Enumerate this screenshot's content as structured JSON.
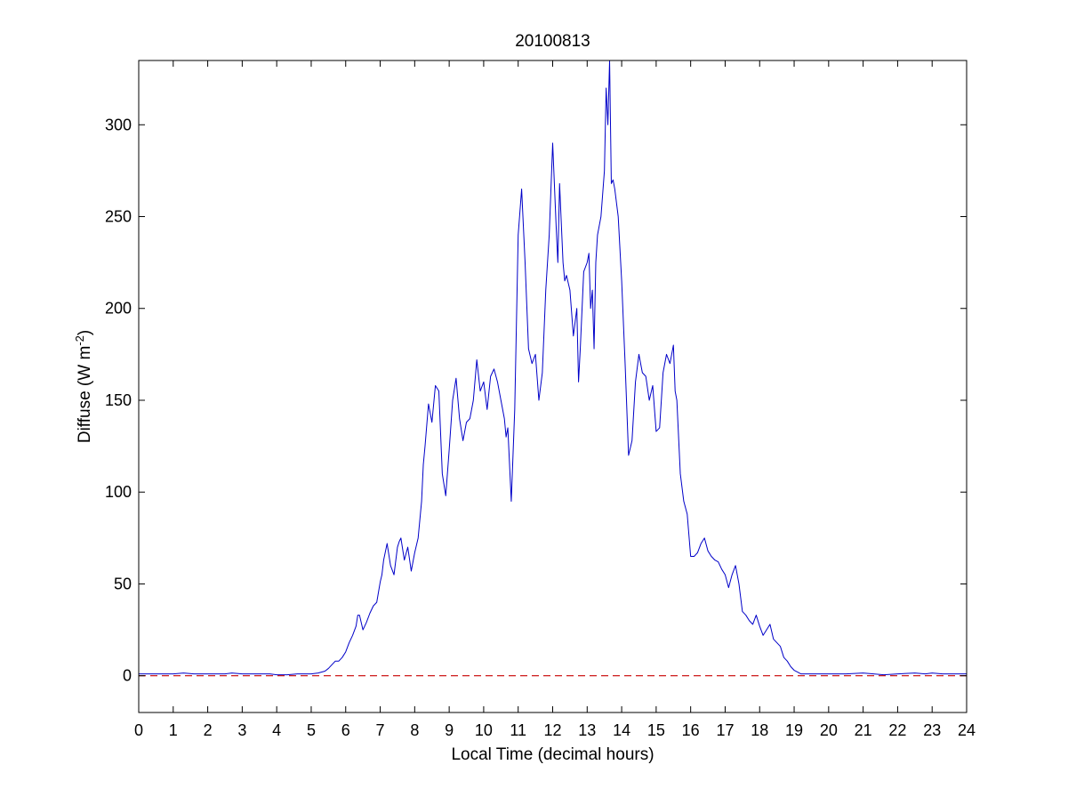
{
  "chart_data": {
    "type": "line",
    "title": "20100813",
    "xlabel": "Local Time (decimal hours)",
    "ylabel": {
      "prefix": "Diffuse (W m",
      "exponent": "-2",
      "suffix": ")"
    },
    "xlim": [
      0,
      24
    ],
    "ylim": [
      -20,
      335
    ],
    "xticks": [
      0,
      1,
      2,
      3,
      4,
      5,
      6,
      7,
      8,
      9,
      10,
      11,
      12,
      13,
      14,
      15,
      16,
      17,
      18,
      19,
      20,
      21,
      22,
      23,
      24
    ],
    "yticks": [
      0,
      50,
      100,
      150,
      200,
      250,
      300
    ],
    "grid": false,
    "series": [
      {
        "style": "solid",
        "color": "#0000c8",
        "x": [
          0,
          0.5,
          1.0,
          1.3,
          1.6,
          2.0,
          2.5,
          2.7,
          3.0,
          3.5,
          3.8,
          4.0,
          4.3,
          4.6,
          5.0,
          5.2,
          5.4,
          5.5,
          5.6,
          5.7,
          5.8,
          5.9,
          6.0,
          6.1,
          6.2,
          6.3,
          6.35,
          6.4,
          6.5,
          6.6,
          6.7,
          6.8,
          6.9,
          7.0,
          7.05,
          7.1,
          7.2,
          7.3,
          7.4,
          7.5,
          7.55,
          7.6,
          7.7,
          7.8,
          7.9,
          8.0,
          8.1,
          8.2,
          8.25,
          8.3,
          8.4,
          8.5,
          8.6,
          8.7,
          8.8,
          8.9,
          9.0,
          9.1,
          9.2,
          9.3,
          9.4,
          9.5,
          9.6,
          9.7,
          9.8,
          9.9,
          10.0,
          10.1,
          10.2,
          10.3,
          10.4,
          10.5,
          10.6,
          10.65,
          10.7,
          10.8,
          10.9,
          11.0,
          11.1,
          11.2,
          11.3,
          11.4,
          11.5,
          11.6,
          11.7,
          11.8,
          11.9,
          12.0,
          12.1,
          12.15,
          12.2,
          12.3,
          12.35,
          12.4,
          12.5,
          12.6,
          12.7,
          12.75,
          12.8,
          12.9,
          13.0,
          13.05,
          13.1,
          13.15,
          13.2,
          13.25,
          13.3,
          13.4,
          13.5,
          13.55,
          13.6,
          13.65,
          13.7,
          13.75,
          13.8,
          13.9,
          14.0,
          14.1,
          14.2,
          14.3,
          14.4,
          14.5,
          14.6,
          14.7,
          14.8,
          14.9,
          15.0,
          15.1,
          15.2,
          15.3,
          15.4,
          15.5,
          15.55,
          15.6,
          15.7,
          15.8,
          15.9,
          16.0,
          16.1,
          16.2,
          16.3,
          16.4,
          16.5,
          16.6,
          16.7,
          16.8,
          16.9,
          17.0,
          17.1,
          17.2,
          17.3,
          17.4,
          17.5,
          17.6,
          17.7,
          17.8,
          17.9,
          18.0,
          18.1,
          18.2,
          18.3,
          18.4,
          18.5,
          18.6,
          18.7,
          18.8,
          18.9,
          19.0,
          19.1,
          19.2,
          19.5,
          20.0,
          20.5,
          21.0,
          21.3,
          21.6,
          22.0,
          22.5,
          22.8,
          23.0,
          23.3,
          23.5,
          24.0
        ],
        "y": [
          1,
          1,
          1,
          1.5,
          1,
          1,
          1,
          1.5,
          1,
          1,
          1,
          0.5,
          0.5,
          1,
          1,
          1.5,
          2.5,
          4,
          6,
          8,
          8,
          10,
          13,
          18,
          22,
          27,
          33,
          33,
          25,
          29,
          34,
          38,
          40,
          51,
          55,
          63,
          72,
          60,
          55,
          70,
          73,
          75,
          63,
          70,
          57,
          67,
          75,
          95,
          115,
          125,
          148,
          138,
          158,
          155,
          110,
          98,
          123,
          150,
          162,
          140,
          128,
          138,
          140,
          150,
          172,
          155,
          160,
          145,
          163,
          167,
          160,
          150,
          140,
          130,
          135,
          95,
          145,
          240,
          265,
          225,
          178,
          170,
          175,
          150,
          165,
          210,
          240,
          290,
          245,
          225,
          268,
          225,
          215,
          218,
          210,
          185,
          200,
          160,
          178,
          220,
          225,
          230,
          200,
          210,
          178,
          225,
          240,
          250,
          275,
          320,
          300,
          335,
          268,
          270,
          265,
          250,
          215,
          170,
          120,
          128,
          160,
          175,
          165,
          163,
          150,
          158,
          133,
          135,
          165,
          175,
          170,
          180,
          155,
          150,
          110,
          95,
          88,
          65,
          65,
          67,
          72,
          75,
          68,
          65,
          63,
          62,
          58,
          55,
          48,
          55,
          60,
          50,
          35,
          33,
          30,
          28,
          33,
          27,
          22,
          25,
          28,
          20,
          18,
          16,
          10,
          8,
          5,
          3,
          2,
          1,
          1,
          1,
          1,
          1.5,
          1,
          0.5,
          1,
          1.5,
          1,
          1.5,
          1,
          1,
          1
        ]
      },
      {
        "style": "dashed",
        "color": "#c80000",
        "x": [
          0,
          24
        ],
        "y": [
          0,
          0
        ]
      }
    ]
  }
}
